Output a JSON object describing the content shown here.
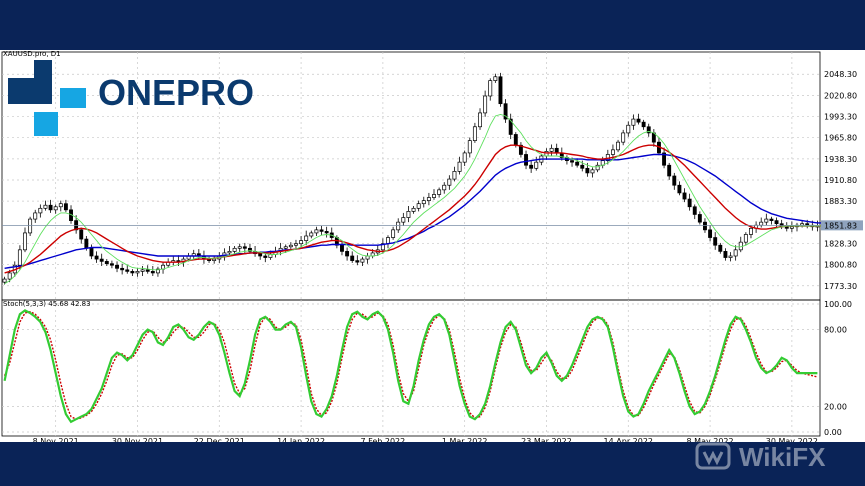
{
  "symbol_label": "XAUUSD.pro, D1",
  "brand": {
    "part1": "ONE",
    "part2": "PRO"
  },
  "watermark": "WikiFX",
  "colors": {
    "candle": "#000000",
    "ma_fast": "#5ee05e",
    "ma_mid": "#cc0000",
    "ma_slow": "#0000cc",
    "stoch_k": "#33cc33",
    "stoch_d": "#cc0000",
    "current_line": "#7a8ea6"
  },
  "chart_data": [
    {
      "type": "line",
      "name": "price",
      "ylim": [
        1760,
        2072
      ],
      "y_ticks": [
        "2048.30",
        "2020.80",
        "1993.30",
        "1965.80",
        "1938.30",
        "1910.80",
        "1883.30",
        "1828.30",
        "1800.80",
        "1773.30"
      ],
      "y_tick_values": [
        2048.3,
        2020.8,
        1993.3,
        1965.8,
        1938.3,
        1910.8,
        1883.3,
        1828.3,
        1800.8,
        1773.3
      ],
      "current_price": 1851.83,
      "current_price_label": "1851.83",
      "x_tick_labels": [
        "8 Nov 2021",
        "30 Nov 2021",
        "22 Dec 2021",
        "14 Jan 2022",
        "7 Feb 2022",
        "1 Mar 2022",
        "23 Mar 2022",
        "14 Apr 2022",
        "8 May 2022",
        "30 May 2022"
      ],
      "x_tick_index": [
        10,
        26,
        42,
        58,
        74,
        90,
        106,
        122,
        138,
        154
      ],
      "candles_close": [
        1782,
        1790,
        1800,
        1820,
        1842,
        1860,
        1868,
        1874,
        1878,
        1872,
        1876,
        1880,
        1872,
        1858,
        1846,
        1834,
        1822,
        1812,
        1808,
        1805,
        1802,
        1800,
        1796,
        1794,
        1792,
        1790,
        1792,
        1794,
        1792,
        1790,
        1795,
        1800,
        1804,
        1806,
        1804,
        1808,
        1812,
        1815,
        1812,
        1808,
        1806,
        1808,
        1812,
        1816,
        1818,
        1822,
        1824,
        1822,
        1818,
        1815,
        1812,
        1810,
        1814,
        1818,
        1822,
        1824,
        1826,
        1828,
        1832,
        1838,
        1842,
        1846,
        1844,
        1842,
        1836,
        1826,
        1818,
        1812,
        1806,
        1804,
        1808,
        1812,
        1816,
        1820,
        1828,
        1836,
        1846,
        1856,
        1862,
        1870,
        1874,
        1880,
        1884,
        1888,
        1892,
        1898,
        1904,
        1912,
        1922,
        1934,
        1946,
        1962,
        1980,
        1998,
        2020,
        2040,
        2045,
        2010,
        1990,
        1970,
        1956,
        1944,
        1930,
        1926,
        1934,
        1942,
        1948,
        1952,
        1946,
        1940,
        1936,
        1934,
        1930,
        1926,
        1920,
        1924,
        1930,
        1936,
        1944,
        1950,
        1960,
        1972,
        1982,
        1990,
        1986,
        1980,
        1972,
        1960,
        1946,
        1930,
        1916,
        1904,
        1894,
        1886,
        1876,
        1866,
        1856,
        1846,
        1836,
        1826,
        1818,
        1810,
        1812,
        1820,
        1830,
        1840,
        1848,
        1852,
        1856,
        1860,
        1858,
        1854,
        1850,
        1848,
        1850,
        1852,
        1854,
        1852,
        1850,
        1851
      ],
      "ma_fast": [
        1776,
        1780,
        1786,
        1794,
        1804,
        1816,
        1828,
        1840,
        1850,
        1858,
        1864,
        1868,
        1868,
        1866,
        1862,
        1856,
        1848,
        1840,
        1832,
        1824,
        1818,
        1813,
        1808,
        1804,
        1800,
        1797,
        1796,
        1796,
        1795,
        1794,
        1794,
        1795,
        1797,
        1799,
        1801,
        1803,
        1806,
        1808,
        1810,
        1810,
        1809,
        1809,
        1810,
        1811,
        1813,
        1815,
        1817,
        1818,
        1819,
        1818,
        1817,
        1815,
        1814,
        1814,
        1815,
        1817,
        1819,
        1821,
        1824,
        1828,
        1832,
        1836,
        1839,
        1840,
        1839,
        1836,
        1832,
        1826,
        1821,
        1816,
        1813,
        1812,
        1812,
        1813,
        1816,
        1820,
        1826,
        1833,
        1840,
        1848,
        1856,
        1862,
        1868,
        1873,
        1878,
        1883,
        1888,
        1894,
        1900,
        1908,
        1916,
        1926,
        1938,
        1952,
        1966,
        1982,
        1994,
        1996,
        1994,
        1988,
        1980,
        1972,
        1962,
        1954,
        1948,
        1944,
        1942,
        1942,
        1942,
        1941,
        1940,
        1938,
        1936,
        1933,
        1930,
        1928,
        1928,
        1930,
        1933,
        1937,
        1942,
        1948,
        1955,
        1962,
        1968,
        1972,
        1974,
        1972,
        1966,
        1958,
        1948,
        1936,
        1924,
        1912,
        1900,
        1888,
        1876,
        1866,
        1856,
        1846,
        1838,
        1831,
        1826,
        1824,
        1824,
        1826,
        1830,
        1834,
        1838,
        1842,
        1846,
        1848,
        1850,
        1851,
        1851,
        1851,
        1851,
        1851,
        1851,
        1851,
        1851,
        1851
      ],
      "ma_mid": [
        1790,
        1792,
        1794,
        1797,
        1800,
        1804,
        1809,
        1814,
        1820,
        1826,
        1832,
        1838,
        1842,
        1845,
        1847,
        1848,
        1847,
        1845,
        1842,
        1838,
        1834,
        1830,
        1826,
        1822,
        1818,
        1815,
        1812,
        1810,
        1808,
        1806,
        1805,
        1804,
        1804,
        1804,
        1804,
        1805,
        1806,
        1807,
        1808,
        1808,
        1808,
        1809,
        1810,
        1811,
        1812,
        1813,
        1814,
        1815,
        1816,
        1816,
        1816,
        1816,
        1816,
        1817,
        1818,
        1819,
        1820,
        1821,
        1822,
        1824,
        1826,
        1828,
        1830,
        1831,
        1832,
        1832,
        1831,
        1829,
        1827,
        1824,
        1822,
        1820,
        1819,
        1818,
        1818,
        1819,
        1821,
        1824,
        1828,
        1832,
        1837,
        1842,
        1847,
        1852,
        1857,
        1862,
        1867,
        1872,
        1878,
        1884,
        1890,
        1897,
        1905,
        1914,
        1924,
        1934,
        1944,
        1950,
        1954,
        1956,
        1956,
        1955,
        1953,
        1951,
        1949,
        1947,
        1946,
        1946,
        1946,
        1946,
        1945,
        1944,
        1943,
        1942,
        1940,
        1939,
        1938,
        1938,
        1939,
        1940,
        1942,
        1944,
        1947,
        1950,
        1953,
        1955,
        1956,
        1956,
        1954,
        1951,
        1947,
        1942,
        1936,
        1930,
        1923,
        1916,
        1909,
        1902,
        1895,
        1888,
        1881,
        1874,
        1868,
        1862,
        1857,
        1853,
        1850,
        1848,
        1847,
        1847,
        1848,
        1849,
        1850,
        1851,
        1851,
        1851,
        1851,
        1851,
        1851,
        1851,
        1851,
        1851
      ],
      "ma_slow": [
        1796,
        1797,
        1798,
        1799,
        1800,
        1802,
        1804,
        1806,
        1808,
        1810,
        1812,
        1814,
        1816,
        1818,
        1820,
        1821,
        1822,
        1823,
        1823,
        1823,
        1822,
        1821,
        1820,
        1819,
        1818,
        1817,
        1816,
        1815,
        1814,
        1813,
        1812,
        1812,
        1812,
        1812,
        1812,
        1812,
        1812,
        1812,
        1812,
        1812,
        1812,
        1812,
        1812,
        1813,
        1813,
        1814,
        1815,
        1815,
        1816,
        1816,
        1817,
        1817,
        1818,
        1818,
        1819,
        1820,
        1820,
        1821,
        1822,
        1823,
        1824,
        1825,
        1826,
        1826,
        1827,
        1827,
        1827,
        1827,
        1826,
        1826,
        1826,
        1826,
        1826,
        1826,
        1827,
        1828,
        1829,
        1831,
        1833,
        1835,
        1838,
        1841,
        1844,
        1848,
        1851,
        1855,
        1859,
        1863,
        1868,
        1873,
        1878,
        1884,
        1890,
        1896,
        1903,
        1910,
        1917,
        1922,
        1926,
        1929,
        1932,
        1934,
        1935,
        1936,
        1937,
        1938,
        1938,
        1938,
        1938,
        1938,
        1938,
        1938,
        1938,
        1938,
        1937,
        1937,
        1937,
        1937,
        1937,
        1937,
        1937,
        1938,
        1939,
        1940,
        1941,
        1942,
        1943,
        1944,
        1944,
        1944,
        1943,
        1942,
        1940,
        1938,
        1935,
        1932,
        1928,
        1924,
        1920,
        1916,
        1911,
        1906,
        1901,
        1896,
        1891,
        1886,
        1881,
        1877,
        1873,
        1870,
        1867,
        1865,
        1863,
        1861,
        1860,
        1859,
        1858,
        1857,
        1856,
        1855,
        1855,
        1855
      ]
    },
    {
      "type": "line",
      "name": "stochastic",
      "label": "Stoch(5,3,3) 45.68 42.83",
      "ylim": [
        0,
        100
      ],
      "y_ticks": [
        "100.00",
        "80.00",
        "20.00",
        "0.00"
      ],
      "y_tick_values": [
        100,
        80,
        20,
        0
      ],
      "k": [
        40,
        60,
        80,
        92,
        95,
        93,
        90,
        86,
        78,
        64,
        46,
        28,
        14,
        8,
        10,
        12,
        14,
        18,
        26,
        34,
        46,
        58,
        62,
        60,
        56,
        60,
        68,
        76,
        80,
        78,
        70,
        68,
        74,
        82,
        84,
        80,
        74,
        72,
        76,
        82,
        86,
        84,
        76,
        62,
        46,
        32,
        28,
        38,
        56,
        76,
        88,
        90,
        86,
        80,
        80,
        84,
        86,
        82,
        66,
        44,
        24,
        14,
        12,
        18,
        28,
        44,
        64,
        82,
        92,
        94,
        90,
        88,
        92,
        94,
        90,
        80,
        62,
        40,
        24,
        22,
        36,
        56,
        72,
        84,
        90,
        92,
        88,
        76,
        56,
        36,
        22,
        12,
        10,
        14,
        22,
        36,
        54,
        70,
        82,
        86,
        80,
        66,
        52,
        46,
        50,
        58,
        62,
        54,
        44,
        40,
        44,
        52,
        62,
        72,
        82,
        88,
        90,
        88,
        82,
        66,
        46,
        28,
        16,
        12,
        14,
        22,
        32,
        40,
        48,
        56,
        64,
        58,
        46,
        32,
        20,
        14,
        16,
        22,
        32,
        44,
        58,
        72,
        84,
        90,
        88,
        80,
        70,
        58,
        50,
        46,
        48,
        52,
        58,
        56,
        50,
        46,
        46,
        46,
        46,
        46
      ],
      "d": [
        44,
        54,
        70,
        86,
        93,
        94,
        92,
        88,
        82,
        72,
        56,
        38,
        22,
        12,
        10,
        11,
        13,
        16,
        22,
        30,
        40,
        52,
        60,
        61,
        58,
        58,
        64,
        72,
        78,
        79,
        74,
        70,
        72,
        78,
        82,
        82,
        78,
        74,
        74,
        78,
        84,
        85,
        80,
        70,
        54,
        38,
        30,
        34,
        48,
        68,
        84,
        90,
        88,
        82,
        80,
        82,
        85,
        84,
        72,
        52,
        30,
        18,
        13,
        15,
        24,
        38,
        58,
        76,
        88,
        93,
        92,
        89,
        90,
        93,
        91,
        84,
        68,
        46,
        30,
        24,
        32,
        50,
        68,
        80,
        88,
        91,
        89,
        80,
        62,
        42,
        26,
        15,
        11,
        12,
        19,
        32,
        50,
        66,
        78,
        84,
        82,
        70,
        56,
        48,
        48,
        54,
        60,
        56,
        47,
        42,
        42,
        48,
        58,
        68,
        78,
        86,
        89,
        89,
        84,
        70,
        50,
        32,
        19,
        13,
        13,
        19,
        28,
        37,
        45,
        53,
        61,
        59,
        49,
        36,
        24,
        16,
        15,
        20,
        29,
        41,
        54,
        68,
        80,
        88,
        89,
        83,
        73,
        62,
        53,
        47,
        47,
        50,
        55,
        56,
        52,
        48,
        46,
        45,
        44,
        43
      ]
    }
  ]
}
